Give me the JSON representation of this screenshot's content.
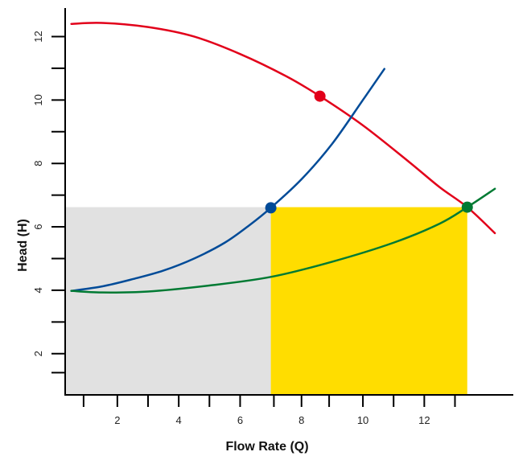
{
  "chart_data": {
    "type": "line",
    "title": "",
    "xlabel": "Flow Rate (Q)",
    "ylabel": "Head (H)",
    "xlim": [
      0.3,
      14.9
    ],
    "ylim": [
      0.7,
      12.9
    ],
    "x_ticks": [
      2,
      4,
      6,
      8,
      10,
      12
    ],
    "x_minor_ticks": [
      0.9,
      3,
      5,
      7.1,
      8.9,
      11,
      13
    ],
    "y_ticks": [
      2,
      4,
      6,
      8,
      10,
      12
    ],
    "y_minor_ticks": [
      1.4,
      3,
      5,
      7,
      9,
      11
    ],
    "grid": false,
    "series": [
      {
        "color": "#e2001a",
        "points": [
          [
            0.5,
            12.4
          ],
          [
            1.5,
            12.43
          ],
          [
            3,
            12.3
          ],
          [
            4.5,
            12.0
          ],
          [
            6,
            11.45
          ],
          [
            7.5,
            10.75
          ],
          [
            8.6,
            10.12
          ],
          [
            10,
            9.2
          ],
          [
            11.5,
            8.05
          ],
          [
            12.5,
            7.25
          ],
          [
            13.4,
            6.62
          ],
          [
            14.3,
            5.8
          ]
        ]
      },
      {
        "color": "#004b98",
        "points": [
          [
            0.5,
            3.98
          ],
          [
            1.5,
            4.12
          ],
          [
            2.5,
            4.35
          ],
          [
            3.5,
            4.62
          ],
          [
            4.5,
            5.0
          ],
          [
            5.5,
            5.5
          ],
          [
            6.3,
            6.05
          ],
          [
            7,
            6.6
          ],
          [
            8,
            7.5
          ],
          [
            9,
            8.62
          ],
          [
            10,
            10.0
          ],
          [
            10.7,
            10.98
          ]
        ]
      },
      {
        "color": "#007a33",
        "points": [
          [
            0.5,
            3.98
          ],
          [
            1.5,
            3.93
          ],
          [
            3,
            3.96
          ],
          [
            5,
            4.15
          ],
          [
            7,
            4.42
          ],
          [
            9,
            4.9
          ],
          [
            11,
            5.5
          ],
          [
            12.5,
            6.1
          ],
          [
            13.4,
            6.62
          ],
          [
            14.3,
            7.2
          ]
        ]
      }
    ],
    "markers": [
      {
        "x": 8.6,
        "y": 10.12,
        "color": "#e2001a"
      },
      {
        "x": 7.0,
        "y": 6.6,
        "color": "#004b98"
      },
      {
        "x": 13.4,
        "y": 6.62,
        "color": "#007a33"
      }
    ],
    "shaded_regions": [
      {
        "x": [
          0.3,
          7.0
        ],
        "y": [
          0.7,
          6.62
        ],
        "color": "#e1e1e1"
      },
      {
        "x": [
          7.0,
          13.4
        ],
        "y": [
          0.7,
          6.62
        ],
        "color": "#ffdd00"
      }
    ]
  }
}
